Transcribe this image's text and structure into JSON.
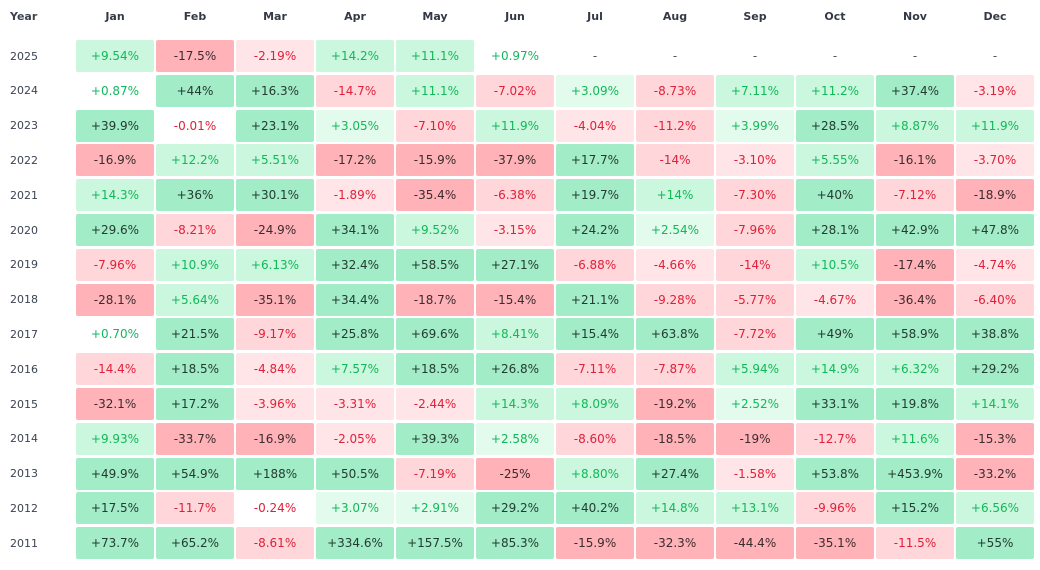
{
  "table": {
    "header": [
      "Year",
      "Jan",
      "Feb",
      "Mar",
      "Apr",
      "May",
      "Jun",
      "Jul",
      "Aug",
      "Sep",
      "Oct",
      "Nov",
      "Dec"
    ],
    "rows": [
      [
        "2025",
        "+9.54%",
        "-17.5%",
        "-2.19%",
        "+14.2%",
        "+11.1%",
        "+0.97%",
        "-",
        "-",
        "-",
        "-",
        "-",
        "-"
      ],
      [
        "2024",
        "+0.87%",
        "+44%",
        "+16.3%",
        "-14.7%",
        "+11.1%",
        "-7.02%",
        "+3.09%",
        "-8.73%",
        "+7.11%",
        "+11.2%",
        "+37.4%",
        "-3.19%"
      ],
      [
        "2023",
        "+39.9%",
        "-0.01%",
        "+23.1%",
        "+3.05%",
        "-7.10%",
        "+11.9%",
        "-4.04%",
        "-11.2%",
        "+3.99%",
        "+28.5%",
        "+8.87%",
        "+11.9%"
      ],
      [
        "2022",
        "-16.9%",
        "+12.2%",
        "+5.51%",
        "-17.2%",
        "-15.9%",
        "-37.9%",
        "+17.7%",
        "-14%",
        "-3.10%",
        "+5.55%",
        "-16.1%",
        "-3.70%"
      ],
      [
        "2021",
        "+14.3%",
        "+36%",
        "+30.1%",
        "-1.89%",
        "-35.4%",
        "-6.38%",
        "+19.7%",
        "+14%",
        "-7.30%",
        "+40%",
        "-7.12%",
        "-18.9%"
      ],
      [
        "2020",
        "+29.6%",
        "-8.21%",
        "-24.9%",
        "+34.1%",
        "+9.52%",
        "-3.15%",
        "+24.2%",
        "+2.54%",
        "-7.96%",
        "+28.1%",
        "+42.9%",
        "+47.8%"
      ],
      [
        "2019",
        "-7.96%",
        "+10.9%",
        "+6.13%",
        "+32.4%",
        "+58.5%",
        "+27.1%",
        "-6.88%",
        "-4.66%",
        "-14%",
        "+10.5%",
        "-17.4%",
        "-4.74%"
      ],
      [
        "2018",
        "-28.1%",
        "+5.64%",
        "-35.1%",
        "+34.4%",
        "-18.7%",
        "-15.4%",
        "+21.1%",
        "-9.28%",
        "-5.77%",
        "-4.67%",
        "-36.4%",
        "-6.40%"
      ],
      [
        "2017",
        "+0.70%",
        "+21.5%",
        "-9.17%",
        "+25.8%",
        "+69.6%",
        "+8.41%",
        "+15.4%",
        "+63.8%",
        "-7.72%",
        "+49%",
        "+58.9%",
        "+38.8%"
      ],
      [
        "2016",
        "-14.4%",
        "+18.5%",
        "-4.84%",
        "+7.57%",
        "+18.5%",
        "+26.8%",
        "-7.11%",
        "-7.87%",
        "+5.94%",
        "+14.9%",
        "+6.32%",
        "+29.2%"
      ],
      [
        "2015",
        "-32.1%",
        "+17.2%",
        "-3.96%",
        "-3.31%",
        "-2.44%",
        "+14.3%",
        "+8.09%",
        "-19.2%",
        "+2.52%",
        "+33.1%",
        "+19.8%",
        "+14.1%"
      ],
      [
        "2014",
        "+9.93%",
        "-33.7%",
        "-16.9%",
        "-2.05%",
        "+39.3%",
        "+2.58%",
        "-8.60%",
        "-18.5%",
        "-19%",
        "-12.7%",
        "+11.6%",
        "-15.3%"
      ],
      [
        "2013",
        "+49.9%",
        "+54.9%",
        "+188%",
        "+50.5%",
        "-7.19%",
        "-25%",
        "+8.80%",
        "+27.4%",
        "-1.58%",
        "+53.8%",
        "+453.9%",
        "-33.2%"
      ],
      [
        "2012",
        "+17.5%",
        "-11.7%",
        "-0.24%",
        "+3.07%",
        "+2.91%",
        "+29.2%",
        "+40.2%",
        "+14.8%",
        "+13.1%",
        "-9.96%",
        "+15.2%",
        "+6.56%"
      ],
      [
        "2011",
        "+73.7%",
        "+65.2%",
        "-8.61%",
        "+334.6%",
        "+157.5%",
        "+85.3%",
        "-15.9%",
        "-32.3%",
        "-44.4%",
        "-35.1%",
        "-11.5%",
        "+55%"
      ]
    ]
  }
}
